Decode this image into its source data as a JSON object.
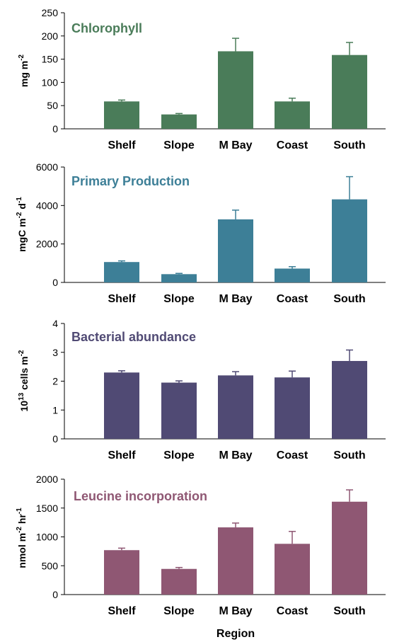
{
  "chart_data": [
    {
      "type": "bar",
      "title": "Chlorophyll",
      "ylabel": "mg m",
      "ylabel_sup": "-2",
      "categories": [
        "Shelf",
        "Slope",
        "M Bay",
        "Coast",
        "South"
      ],
      "values": [
        59,
        31,
        167,
        59,
        159
      ],
      "errors": [
        3,
        2,
        28,
        7,
        27
      ],
      "ylim": [
        0,
        250
      ],
      "yticks": [
        0,
        50,
        100,
        150,
        200,
        250
      ],
      "color": "#4a7c59"
    },
    {
      "type": "bar",
      "title": "Primary Production",
      "ylabel": "mgC m-2 d-1",
      "categories": [
        "Shelf",
        "Slope",
        "M Bay",
        "Coast",
        "South"
      ],
      "values": [
        1060,
        430,
        3280,
        720,
        4320
      ],
      "errors": [
        60,
        40,
        480,
        100,
        1180
      ],
      "ylim": [
        0,
        6000
      ],
      "yticks": [
        0,
        2000,
        4000,
        6000
      ],
      "color": "#3d7f97"
    },
    {
      "type": "bar",
      "title": "Bacterial abundance",
      "ylabel": "1013 cells m-2",
      "categories": [
        "Shelf",
        "Slope",
        "M Bay",
        "Coast",
        "South"
      ],
      "values": [
        2.3,
        1.95,
        2.2,
        2.13,
        2.7
      ],
      "errors": [
        0.06,
        0.06,
        0.13,
        0.22,
        0.38
      ],
      "ylim": [
        0,
        4
      ],
      "yticks": [
        0,
        1,
        2,
        3,
        4
      ],
      "color": "#504a74"
    },
    {
      "type": "bar",
      "title": "Leucine incorporation",
      "ylabel": "nmol m-2 hr-1",
      "categories": [
        "Shelf",
        "Slope",
        "M Bay",
        "Coast",
        "South"
      ],
      "values": [
        770,
        445,
        1165,
        880,
        1610
      ],
      "errors": [
        35,
        25,
        75,
        215,
        205
      ],
      "ylim": [
        0,
        2000
      ],
      "yticks": [
        0,
        500,
        1000,
        1500,
        2000
      ],
      "color": "#8f5773",
      "xlabel": "Region"
    }
  ]
}
